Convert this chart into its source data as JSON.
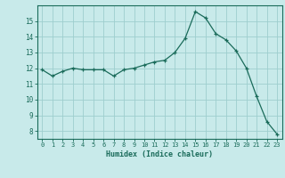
{
  "x": [
    0,
    1,
    2,
    3,
    4,
    5,
    6,
    7,
    8,
    9,
    10,
    11,
    12,
    13,
    14,
    15,
    16,
    17,
    18,
    19,
    20,
    21,
    22,
    23
  ],
  "y": [
    11.9,
    11.5,
    11.8,
    12.0,
    11.9,
    11.9,
    11.9,
    11.5,
    11.9,
    12.0,
    12.2,
    12.4,
    12.5,
    13.0,
    13.9,
    15.6,
    15.2,
    14.2,
    13.8,
    13.1,
    12.0,
    10.2,
    8.6,
    7.8
  ],
  "line_color": "#1a6b5a",
  "marker": "+",
  "marker_size": 3,
  "bg_color": "#c8eaea",
  "grid_color": "#9ecece",
  "xlabel": "Humidex (Indice chaleur)",
  "xlim": [
    -0.5,
    23.5
  ],
  "ylim": [
    7.5,
    16.0
  ],
  "yticks": [
    8,
    9,
    10,
    11,
    12,
    13,
    14,
    15
  ],
  "xticks": [
    0,
    1,
    2,
    3,
    4,
    5,
    6,
    7,
    8,
    9,
    10,
    11,
    12,
    13,
    14,
    15,
    16,
    17,
    18,
    19,
    20,
    21,
    22,
    23
  ]
}
